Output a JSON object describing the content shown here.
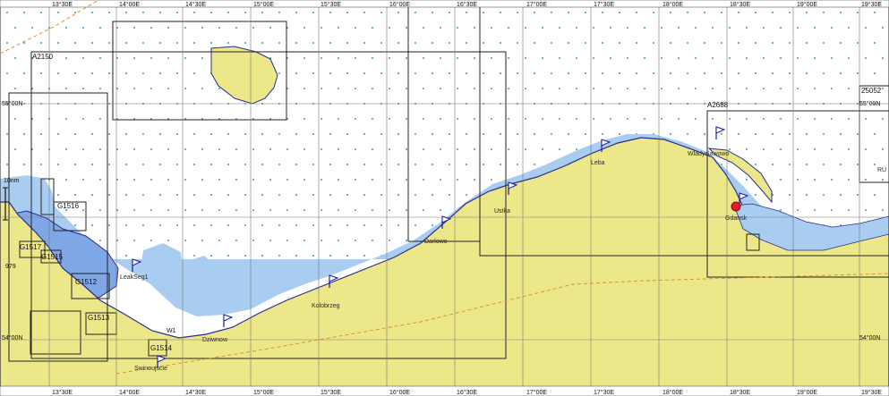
{
  "map": {
    "colors": {
      "water": "#ffffff",
      "land": "#ece88a",
      "shallow": "#a9cdf1",
      "coast_line": "#2b2b8a",
      "chart_border": "#222222",
      "grid_line": "#777777",
      "dot": "#2aa7a7",
      "marker": "#e0202a",
      "route": "#e0902a",
      "flag": "#1a1aa0"
    },
    "longitude_labels": [
      "13°30E",
      "14°00E",
      "14°30E",
      "15°00E",
      "15°30E",
      "16°00E",
      "16°30E",
      "17°00E",
      "17°30E",
      "18°00E",
      "18°30E",
      "19°00E",
      "19°30E"
    ],
    "longitude_labels_bottom": [
      "13°30E",
      "14°00E",
      "14°30E",
      "15°00E",
      "15°30E",
      "16°00E",
      "16°30E",
      "17°00E",
      "17°30E",
      "18°00E",
      "18°30E",
      "19°00E",
      "19°30E"
    ],
    "latitude_labels": [
      {
        "text": "55°00N",
        "side": "left"
      },
      {
        "text": "55°00N",
        "side": "right"
      },
      {
        "text": "54°00N",
        "side": "left"
      },
      {
        "text": "54°00N",
        "side": "right"
      }
    ],
    "chart_ids": [
      "A2150",
      "A2688",
      "G1516",
      "G1517",
      "G1515",
      "G1512",
      "G1513",
      "25052",
      "G1514"
    ],
    "cities": [
      "Leba",
      "Wladyslawowo",
      "Ustka",
      "Gdansk",
      "Darlowo",
      "Kolobrzeg",
      "Dziwnow",
      "Swinoujscie",
      "LeakSeg1",
      "RU"
    ],
    "small_labels": [
      "979",
      "10nm",
      "W1",
      "G1514"
    ],
    "marker": {
      "name": "current position"
    }
  }
}
